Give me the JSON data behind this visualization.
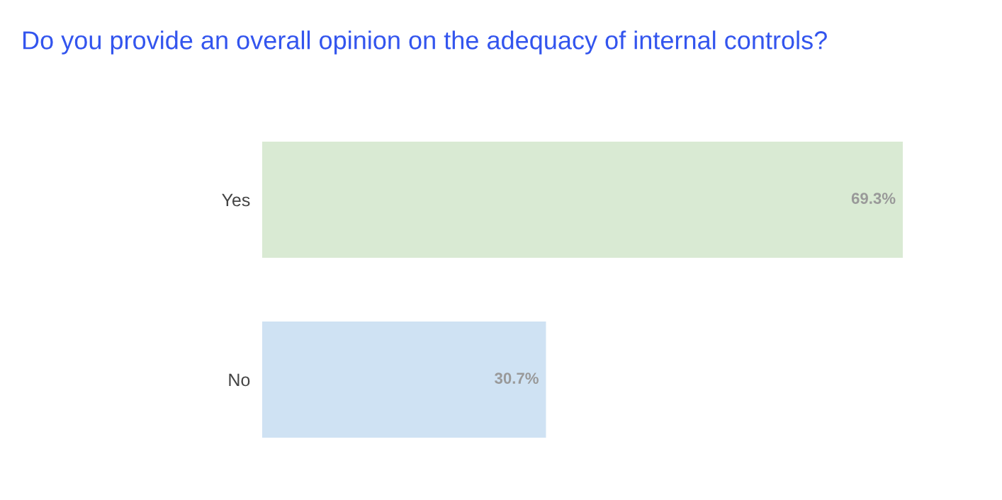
{
  "chart_data": {
    "type": "bar",
    "orientation": "horizontal",
    "title": "Do you provide an overall opinion on the adequacy of internal controls?",
    "categories": [
      "Yes",
      "No"
    ],
    "values": [
      69.3,
      30.7
    ],
    "colors": [
      "#d9ead3",
      "#cfe2f3"
    ],
    "value_labels": [
      "69.3%",
      "30.7%"
    ],
    "grid": false,
    "legend": false
  }
}
